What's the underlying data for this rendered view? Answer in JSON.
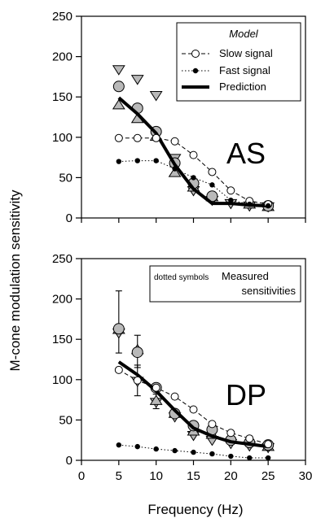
{
  "chart_data": [
    {
      "type": "line",
      "panel_label": "AS",
      "xlim": [
        0,
        30
      ],
      "ylim": [
        0,
        250
      ],
      "x_ticks": [],
      "y_ticks": [
        "0",
        "50",
        "100",
        "150",
        "200",
        "250"
      ],
      "legend": {
        "title": "Model",
        "placement": "top-right",
        "entries": [
          "Slow signal",
          "Fast signal",
          "Prediction"
        ]
      },
      "series": [
        {
          "name": "Slow signal",
          "x": [
            5,
            7.5,
            10,
            12.5,
            15,
            17.5,
            20,
            22.5,
            25
          ],
          "y": [
            99,
            99,
            99,
            95,
            78,
            57,
            34,
            21,
            17
          ]
        },
        {
          "name": "Fast signal",
          "x": [
            5,
            7.5,
            10,
            12.5,
            15,
            17.5,
            20,
            22.5,
            25
          ],
          "y": [
            70,
            71,
            71,
            61,
            50,
            41,
            22,
            17,
            15
          ]
        },
        {
          "name": "Prediction",
          "x": [
            5,
            7.5,
            10,
            12.5,
            15,
            17.5,
            20,
            22.5,
            25
          ],
          "y": [
            149,
            129,
            105,
            66,
            36,
            18,
            18,
            16,
            15
          ]
        }
      ],
      "measured": {
        "circles": {
          "x": [
            5,
            7.5,
            10,
            12.5,
            15,
            17.5,
            25
          ],
          "y": [
            163,
            136,
            107,
            68,
            43,
            27,
            15
          ]
        },
        "triangles_up": {
          "x": [
            5,
            7.5,
            10,
            12.5,
            15,
            17.5,
            22.5,
            25
          ],
          "y": [
            140,
            123,
            101,
            56,
            38,
            26,
            17,
            14
          ]
        },
        "triangles_down": {
          "x": [
            5,
            7.5,
            10,
            12.5,
            15,
            17.5,
            20,
            22.5,
            25
          ],
          "y": [
            184,
            172,
            152,
            74,
            34,
            22,
            18,
            15,
            14
          ]
        }
      }
    },
    {
      "type": "line",
      "panel_label": "DP",
      "xlim": [
        0,
        30
      ],
      "ylim": [
        0,
        250
      ],
      "x_ticks": [
        "0",
        "5",
        "10",
        "15",
        "20",
        "25",
        "30"
      ],
      "y_ticks": [
        "0",
        "50",
        "100",
        "150",
        "200",
        "250"
      ],
      "xlabel": "Frequency (Hz)",
      "legend": {
        "note": "dotted symbols",
        "label_lines": [
          "Measured",
          "sensitivities"
        ],
        "placement": "top-right"
      },
      "series": [
        {
          "name": "Slow signal",
          "x": [
            5,
            7.5,
            10,
            12.5,
            15,
            17.5,
            20,
            22.5,
            25
          ],
          "y": [
            112,
            99,
            90,
            79,
            63,
            45,
            34,
            27,
            20
          ]
        },
        {
          "name": "Fast signal",
          "x": [
            5,
            7.5,
            10,
            12.5,
            15,
            17.5,
            20,
            22.5,
            25
          ],
          "y": [
            19,
            17,
            14,
            12,
            10,
            8,
            5,
            3,
            3
          ]
        },
        {
          "name": "Prediction",
          "x": [
            5,
            7.5,
            10,
            12.5,
            15,
            17.5,
            20,
            22.5,
            25
          ],
          "y": [
            122,
            106,
            86,
            62,
            40,
            30,
            23,
            20,
            17
          ]
        }
      ],
      "measured": {
        "circles": {
          "x": [
            5,
            7.5,
            10,
            12.5,
            15,
            17.5,
            20,
            22.5,
            25
          ],
          "y": [
            163,
            134,
            90,
            58,
            43,
            38,
            25,
            22,
            19
          ]
        },
        "triangles_up": {
          "x": [
            5,
            7.5,
            10,
            12.5,
            15,
            17.5,
            25
          ],
          "y": [
            162,
            137,
            74,
            58,
            36,
            32,
            17
          ]
        },
        "triangles_down": {
          "x": [
            5,
            7.5,
            10,
            12.5,
            15,
            17.5,
            20,
            22.5,
            25
          ],
          "y": [
            158,
            98,
            72,
            54,
            31,
            25,
            21,
            18,
            16
          ]
        }
      },
      "error_bars": [
        {
          "x": 5,
          "y": 163,
          "low": 133,
          "high": 210
        },
        {
          "x": 7.5,
          "y": 134,
          "low": 115,
          "high": 155
        },
        {
          "x": 7.5,
          "y": 98,
          "low": 80,
          "high": 118
        },
        {
          "x": 10,
          "y": 72,
          "low": 64,
          "high": 82
        }
      ]
    }
  ],
  "ylabel": "M-cone modulation sensitivity"
}
